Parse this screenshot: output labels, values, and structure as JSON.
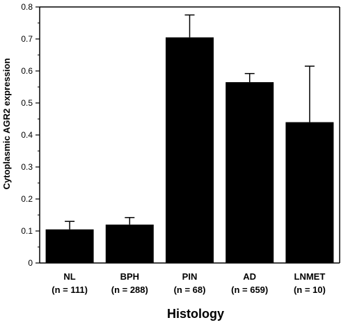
{
  "chart_data": {
    "type": "bar",
    "title": "",
    "xlabel": "Histology",
    "ylabel": "Cytoplasmic AGR2 expression",
    "ylim": [
      0,
      0.8
    ],
    "yticks": [
      "0",
      "0.1",
      "0.2",
      "0.3",
      "0.4",
      "0.5",
      "0.6",
      "0.7",
      "0.8"
    ],
    "categories": [
      "NL",
      "BPH",
      "PIN",
      "AD",
      "LNMET"
    ],
    "sample_sizes": [
      "(n = 111)",
      "(n = 288)",
      "(n = 68)",
      "(n = 659)",
      "(n = 10)"
    ],
    "values": [
      0.105,
      0.12,
      0.705,
      0.565,
      0.44
    ],
    "error_upper": [
      0.13,
      0.142,
      0.775,
      0.592,
      0.615
    ],
    "grid": false,
    "legend": "none",
    "colors": {
      "bar": "#000000",
      "axis": "#000000",
      "background": "#ffffff"
    }
  }
}
